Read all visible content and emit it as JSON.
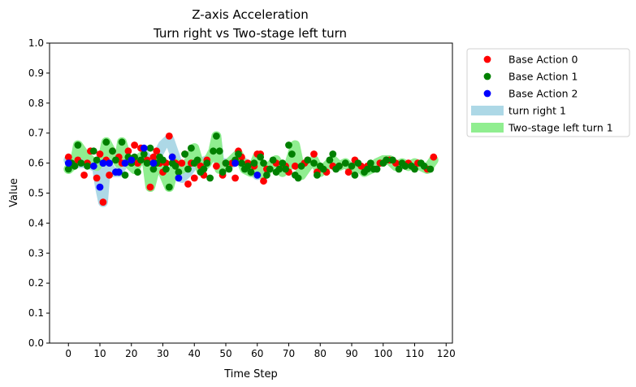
{
  "chart_data": {
    "type": "scatter",
    "title": "Z-axis Acceleration",
    "subtitle": "Turn right vs Two-stage left turn",
    "xlabel": "Time Step",
    "ylabel": "Value",
    "xlim": [
      -6,
      122
    ],
    "ylim": [
      0.0,
      1.0
    ],
    "xticks": [
      "0",
      "10",
      "20",
      "30",
      "40",
      "50",
      "60",
      "70",
      "80",
      "90",
      "100",
      "110",
      "120"
    ],
    "yticks": [
      "0.0",
      "0.1",
      "0.2",
      "0.3",
      "0.4",
      "0.5",
      "0.6",
      "0.7",
      "0.8",
      "0.9",
      "1.0"
    ],
    "grid": false,
    "legend_position": "outside-right",
    "bands": [
      {
        "name": "turn right 1",
        "color": "#add8e6",
        "x": [
          0,
          2,
          4,
          6,
          8,
          9,
          10,
          11,
          12,
          14,
          16,
          18,
          20,
          22,
          24,
          26,
          28,
          30,
          32,
          34,
          36,
          38,
          40,
          42,
          44,
          46,
          47,
          48,
          50,
          52,
          54,
          56,
          58,
          60
        ],
        "y": [
          0.61,
          0.6,
          0.6,
          0.6,
          0.59,
          0.59,
          0.52,
          0.47,
          0.6,
          0.57,
          0.57,
          0.61,
          0.61,
          0.6,
          0.63,
          0.6,
          0.62,
          0.66,
          0.68,
          0.62,
          0.55,
          0.57,
          0.6,
          0.6,
          0.61,
          0.62,
          0.69,
          0.6,
          0.6,
          0.6,
          0.61,
          0.6,
          0.58,
          0.56
        ]
      },
      {
        "name": "Two-stage left turn 1",
        "color": "#90ee90",
        "x": [
          0,
          2,
          3,
          5,
          7,
          9,
          11,
          12,
          14,
          16,
          17,
          19,
          21,
          23,
          25,
          26,
          28,
          30,
          32,
          34,
          36,
          38,
          40,
          42,
          44,
          46,
          47,
          48,
          50,
          52,
          54,
          56,
          58,
          60,
          62,
          64,
          66,
          68,
          70,
          72,
          74,
          76,
          78,
          80,
          82,
          84,
          86,
          88,
          90,
          92,
          94,
          96,
          98,
          100,
          102,
          104,
          106,
          108,
          110,
          112,
          114,
          116
        ],
        "y": [
          0.58,
          0.6,
          0.66,
          0.63,
          0.61,
          0.59,
          0.62,
          0.67,
          0.63,
          0.6,
          0.67,
          0.6,
          0.58,
          0.62,
          0.6,
          0.52,
          0.6,
          0.57,
          0.52,
          0.6,
          0.58,
          0.6,
          0.65,
          0.58,
          0.6,
          0.64,
          0.69,
          0.58,
          0.59,
          0.61,
          0.63,
          0.58,
          0.57,
          0.62,
          0.56,
          0.59,
          0.61,
          0.57,
          0.59,
          0.66,
          0.56,
          0.59,
          0.61,
          0.57,
          0.59,
          0.61,
          0.59,
          0.6,
          0.58,
          0.59,
          0.57,
          0.58,
          0.6,
          0.61,
          0.61,
          0.59,
          0.6,
          0.59,
          0.6,
          0.59,
          0.58,
          0.61
        ]
      }
    ],
    "series": [
      {
        "name": "Base Action 0",
        "color": "#ff0000",
        "points": [
          [
            0,
            0.62
          ],
          [
            3,
            0.61
          ],
          [
            5,
            0.56
          ],
          [
            6,
            0.6
          ],
          [
            7,
            0.64
          ],
          [
            9,
            0.55
          ],
          [
            10,
            0.63
          ],
          [
            11,
            0.47
          ],
          [
            12,
            0.61
          ],
          [
            13,
            0.56
          ],
          [
            14,
            0.64
          ],
          [
            16,
            0.62
          ],
          [
            17,
            0.6
          ],
          [
            19,
            0.64
          ],
          [
            21,
            0.66
          ],
          [
            22,
            0.6
          ],
          [
            23,
            0.65
          ],
          [
            25,
            0.61
          ],
          [
            26,
            0.52
          ],
          [
            27,
            0.62
          ],
          [
            28,
            0.64
          ],
          [
            29,
            0.6
          ],
          [
            30,
            0.57
          ],
          [
            31,
            0.6
          ],
          [
            32,
            0.69
          ],
          [
            33,
            0.62
          ],
          [
            34,
            0.6
          ],
          [
            36,
            0.6
          ],
          [
            37,
            0.63
          ],
          [
            38,
            0.53
          ],
          [
            39,
            0.6
          ],
          [
            40,
            0.55
          ],
          [
            42,
            0.59
          ],
          [
            43,
            0.56
          ],
          [
            44,
            0.61
          ],
          [
            47,
            0.59
          ],
          [
            49,
            0.56
          ],
          [
            50,
            0.6
          ],
          [
            52,
            0.6
          ],
          [
            53,
            0.55
          ],
          [
            54,
            0.64
          ],
          [
            55,
            0.62
          ],
          [
            57,
            0.6
          ],
          [
            59,
            0.59
          ],
          [
            60,
            0.63
          ],
          [
            61,
            0.63
          ],
          [
            62,
            0.54
          ],
          [
            63,
            0.58
          ],
          [
            66,
            0.6
          ],
          [
            69,
            0.59
          ],
          [
            70,
            0.57
          ],
          [
            72,
            0.59
          ],
          [
            75,
            0.6
          ],
          [
            76,
            0.61
          ],
          [
            78,
            0.63
          ],
          [
            79,
            0.57
          ],
          [
            82,
            0.57
          ],
          [
            84,
            0.59
          ],
          [
            86,
            0.59
          ],
          [
            89,
            0.57
          ],
          [
            91,
            0.61
          ],
          [
            93,
            0.59
          ],
          [
            95,
            0.59
          ],
          [
            99,
            0.6
          ],
          [
            101,
            0.61
          ],
          [
            102,
            0.61
          ],
          [
            104,
            0.6
          ],
          [
            108,
            0.6
          ],
          [
            111,
            0.6
          ],
          [
            114,
            0.58
          ],
          [
            116,
            0.62
          ]
        ]
      },
      {
        "name": "Base Action 1",
        "color": "#008000",
        "points": [
          [
            0,
            0.58
          ],
          [
            1,
            0.6
          ],
          [
            2,
            0.59
          ],
          [
            3,
            0.66
          ],
          [
            4,
            0.6
          ],
          [
            6,
            0.59
          ],
          [
            8,
            0.64
          ],
          [
            9,
            0.61
          ],
          [
            11,
            0.6
          ],
          [
            12,
            0.67
          ],
          [
            14,
            0.64
          ],
          [
            15,
            0.61
          ],
          [
            16,
            0.57
          ],
          [
            17,
            0.67
          ],
          [
            18,
            0.56
          ],
          [
            19,
            0.62
          ],
          [
            20,
            0.6
          ],
          [
            21,
            0.62
          ],
          [
            22,
            0.57
          ],
          [
            23,
            0.61
          ],
          [
            24,
            0.63
          ],
          [
            25,
            0.6
          ],
          [
            26,
            0.65
          ],
          [
            27,
            0.58
          ],
          [
            28,
            0.6
          ],
          [
            29,
            0.62
          ],
          [
            30,
            0.61
          ],
          [
            31,
            0.58
          ],
          [
            32,
            0.52
          ],
          [
            33,
            0.6
          ],
          [
            34,
            0.59
          ],
          [
            35,
            0.57
          ],
          [
            37,
            0.63
          ],
          [
            38,
            0.58
          ],
          [
            39,
            0.65
          ],
          [
            40,
            0.6
          ],
          [
            41,
            0.61
          ],
          [
            42,
            0.57
          ],
          [
            43,
            0.58
          ],
          [
            44,
            0.6
          ],
          [
            45,
            0.55
          ],
          [
            46,
            0.64
          ],
          [
            47,
            0.69
          ],
          [
            48,
            0.64
          ],
          [
            49,
            0.57
          ],
          [
            50,
            0.6
          ],
          [
            51,
            0.58
          ],
          [
            53,
            0.61
          ],
          [
            54,
            0.63
          ],
          [
            55,
            0.6
          ],
          [
            56,
            0.58
          ],
          [
            57,
            0.59
          ],
          [
            58,
            0.57
          ],
          [
            59,
            0.6
          ],
          [
            61,
            0.62
          ],
          [
            62,
            0.6
          ],
          [
            63,
            0.56
          ],
          [
            64,
            0.58
          ],
          [
            65,
            0.61
          ],
          [
            66,
            0.57
          ],
          [
            67,
            0.58
          ],
          [
            68,
            0.6
          ],
          [
            69,
            0.58
          ],
          [
            70,
            0.66
          ],
          [
            71,
            0.63
          ],
          [
            72,
            0.56
          ],
          [
            73,
            0.55
          ],
          [
            74,
            0.59
          ],
          [
            76,
            0.61
          ],
          [
            78,
            0.6
          ],
          [
            79,
            0.56
          ],
          [
            80,
            0.59
          ],
          [
            81,
            0.58
          ],
          [
            83,
            0.61
          ],
          [
            84,
            0.63
          ],
          [
            85,
            0.58
          ],
          [
            86,
            0.59
          ],
          [
            88,
            0.6
          ],
          [
            90,
            0.59
          ],
          [
            91,
            0.56
          ],
          [
            92,
            0.6
          ],
          [
            94,
            0.57
          ],
          [
            95,
            0.58
          ],
          [
            96,
            0.6
          ],
          [
            97,
            0.58
          ],
          [
            98,
            0.58
          ],
          [
            100,
            0.6
          ],
          [
            101,
            0.61
          ],
          [
            103,
            0.61
          ],
          [
            105,
            0.58
          ],
          [
            106,
            0.6
          ],
          [
            107,
            0.59
          ],
          [
            109,
            0.59
          ],
          [
            110,
            0.58
          ],
          [
            112,
            0.6
          ],
          [
            113,
            0.59
          ],
          [
            115,
            0.58
          ]
        ]
      },
      {
        "name": "Base Action 2",
        "color": "#0000ff",
        "points": [
          [
            0,
            0.6
          ],
          [
            8,
            0.59
          ],
          [
            10,
            0.52
          ],
          [
            11,
            0.6
          ],
          [
            13,
            0.6
          ],
          [
            15,
            0.57
          ],
          [
            16,
            0.57
          ],
          [
            18,
            0.6
          ],
          [
            20,
            0.61
          ],
          [
            24,
            0.65
          ],
          [
            27,
            0.6
          ],
          [
            33,
            0.62
          ],
          [
            35,
            0.55
          ],
          [
            53,
            0.6
          ],
          [
            60,
            0.56
          ]
        ]
      }
    ]
  }
}
